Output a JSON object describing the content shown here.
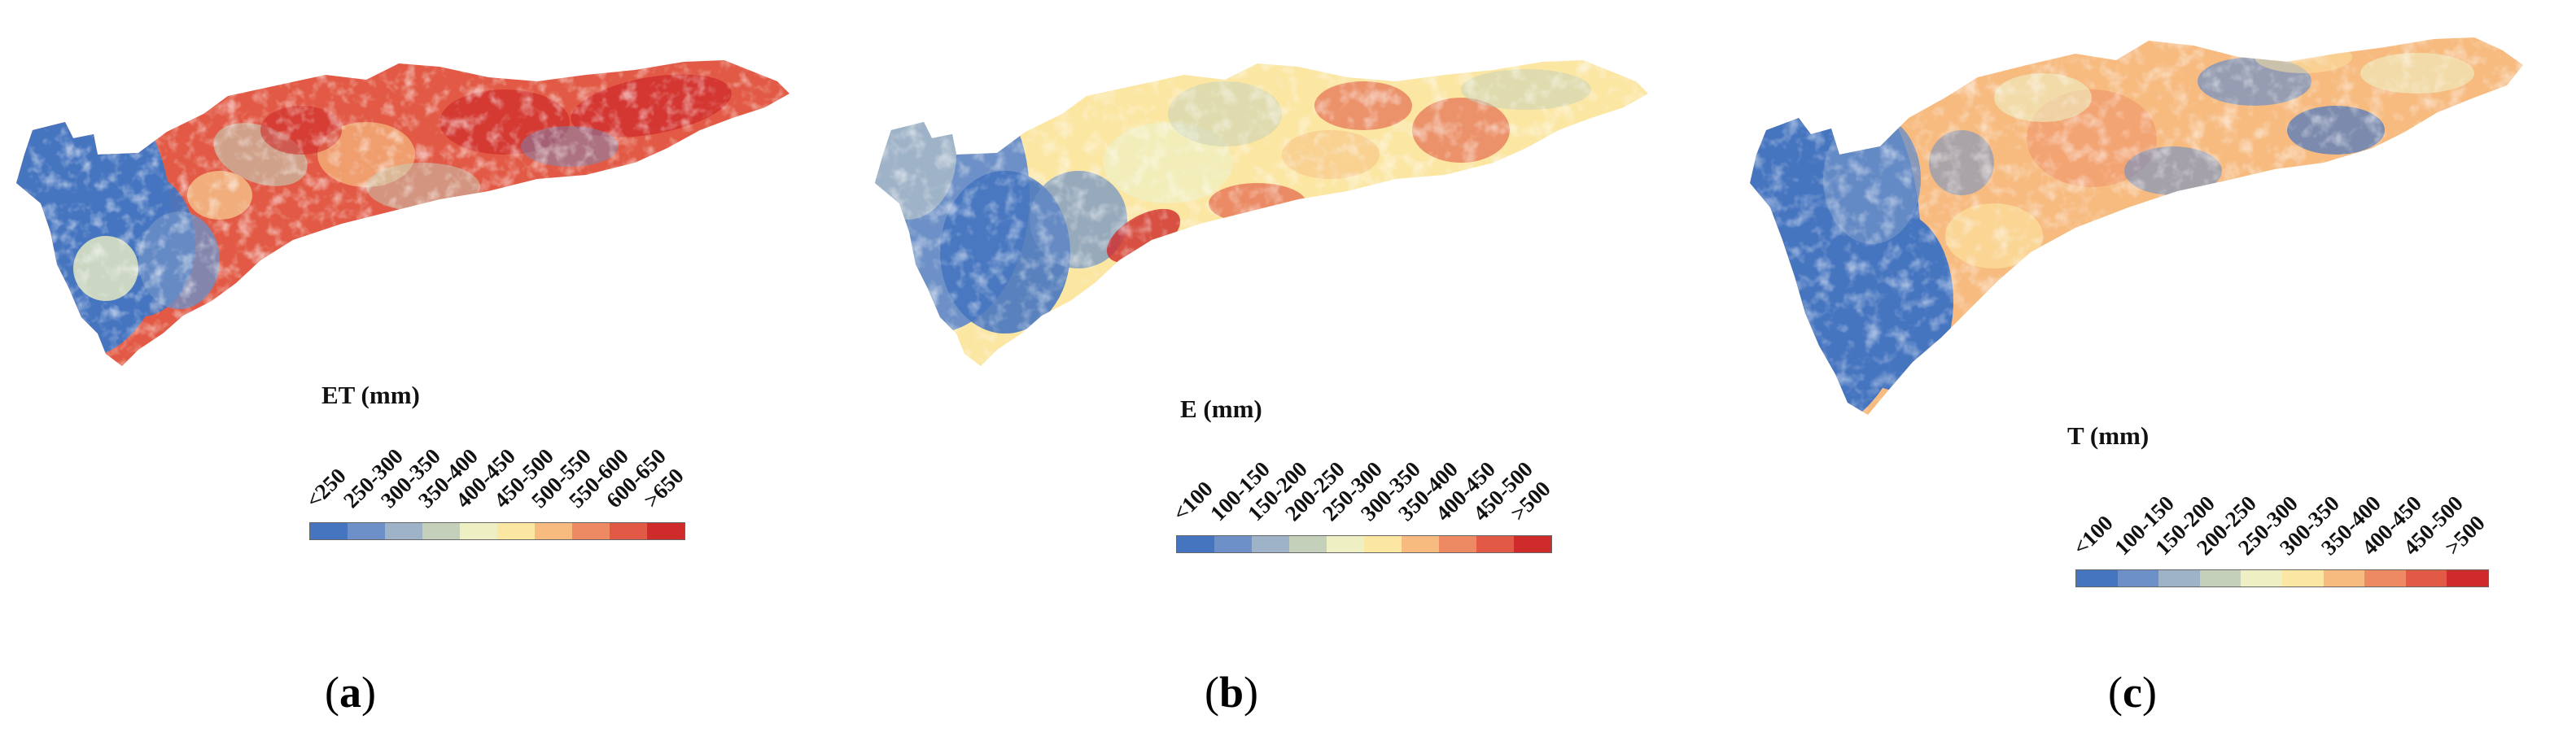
{
  "panels": [
    {
      "id": "a",
      "label": "a",
      "legend_title": "ET (mm)",
      "legend_classes": [
        "<250",
        "250-300",
        "300-350",
        "350-400",
        "400-450",
        "450-500",
        "500-550",
        "550-600",
        "600-650",
        ">650"
      ],
      "dominant_colors": [
        "#e3462f",
        "#4e77c2"
      ]
    },
    {
      "id": "b",
      "label": "b",
      "legend_title": "E (mm)",
      "legend_classes": [
        "<100",
        "100-150",
        "150-200",
        "200-250",
        "250-300",
        "300-350",
        "350-400",
        "400-450",
        "450-500",
        ">500"
      ],
      "dominant_colors": [
        "#fbe9a8",
        "#4e77c2"
      ]
    },
    {
      "id": "c",
      "label": "c",
      "legend_title": "T (mm)",
      "legend_classes": [
        "<100",
        "100-150",
        "150-200",
        "200-250",
        "250-300",
        "300-350",
        "350-400",
        "400-450",
        "450-500",
        ">500"
      ],
      "dominant_colors": [
        "#f7c68c",
        "#4e77c2"
      ]
    }
  ],
  "palette": [
    "#4675c0",
    "#6c90c7",
    "#9fb3c8",
    "#c4d0b9",
    "#eef0c3",
    "#fbe6a2",
    "#f7bb80",
    "#ee8a63",
    "#e25a45",
    "#cf2b2b"
  ]
}
